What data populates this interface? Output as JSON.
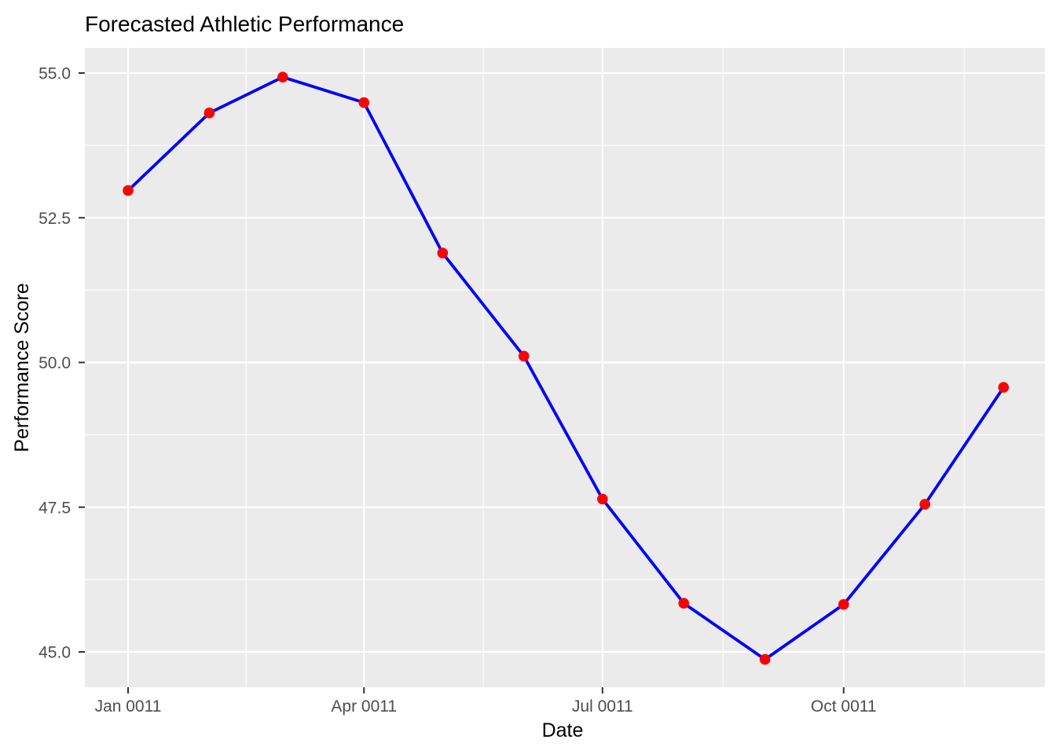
{
  "chart_data": {
    "type": "line",
    "title": "Forecasted Athletic Performance",
    "xlabel": "Date",
    "ylabel": "Performance Score",
    "series": [
      {
        "name": "Performance Score",
        "x": [
          "Jan 0011",
          "Feb 0011",
          "Mar 0011",
          "Apr 0011",
          "May 0011",
          "Jun 0011",
          "Jul 0011",
          "Aug 0011",
          "Sep 0011",
          "Oct 0011",
          "Nov 0011",
          "Dec 0011"
        ],
        "values": [
          52.97,
          54.31,
          54.93,
          54.49,
          51.89,
          50.11,
          47.64,
          45.84,
          44.87,
          45.82,
          47.55,
          49.57
        ]
      }
    ],
    "x_tick_labels": [
      "Jan 0011",
      "Apr 0011",
      "Jul 0011",
      "Oct 0011"
    ],
    "y_tick_labels": [
      "55.0",
      "52.5",
      "50.0",
      "47.5",
      "45.0"
    ],
    "y_tick_values": [
      55.0,
      52.5,
      50.0,
      47.5,
      45.0
    ],
    "ylim": [
      44.4,
      55.4
    ],
    "grid": "major and minor, white on gray panel",
    "legend_position": "none",
    "colors": {
      "line": "#0000ff",
      "point": "#ff0000",
      "panel_background": "#ebebeb",
      "gridline": "#ffffff",
      "tick_mark": "#333333",
      "tick_label_text": "#4d4d4d",
      "title_text": "#000000"
    }
  }
}
